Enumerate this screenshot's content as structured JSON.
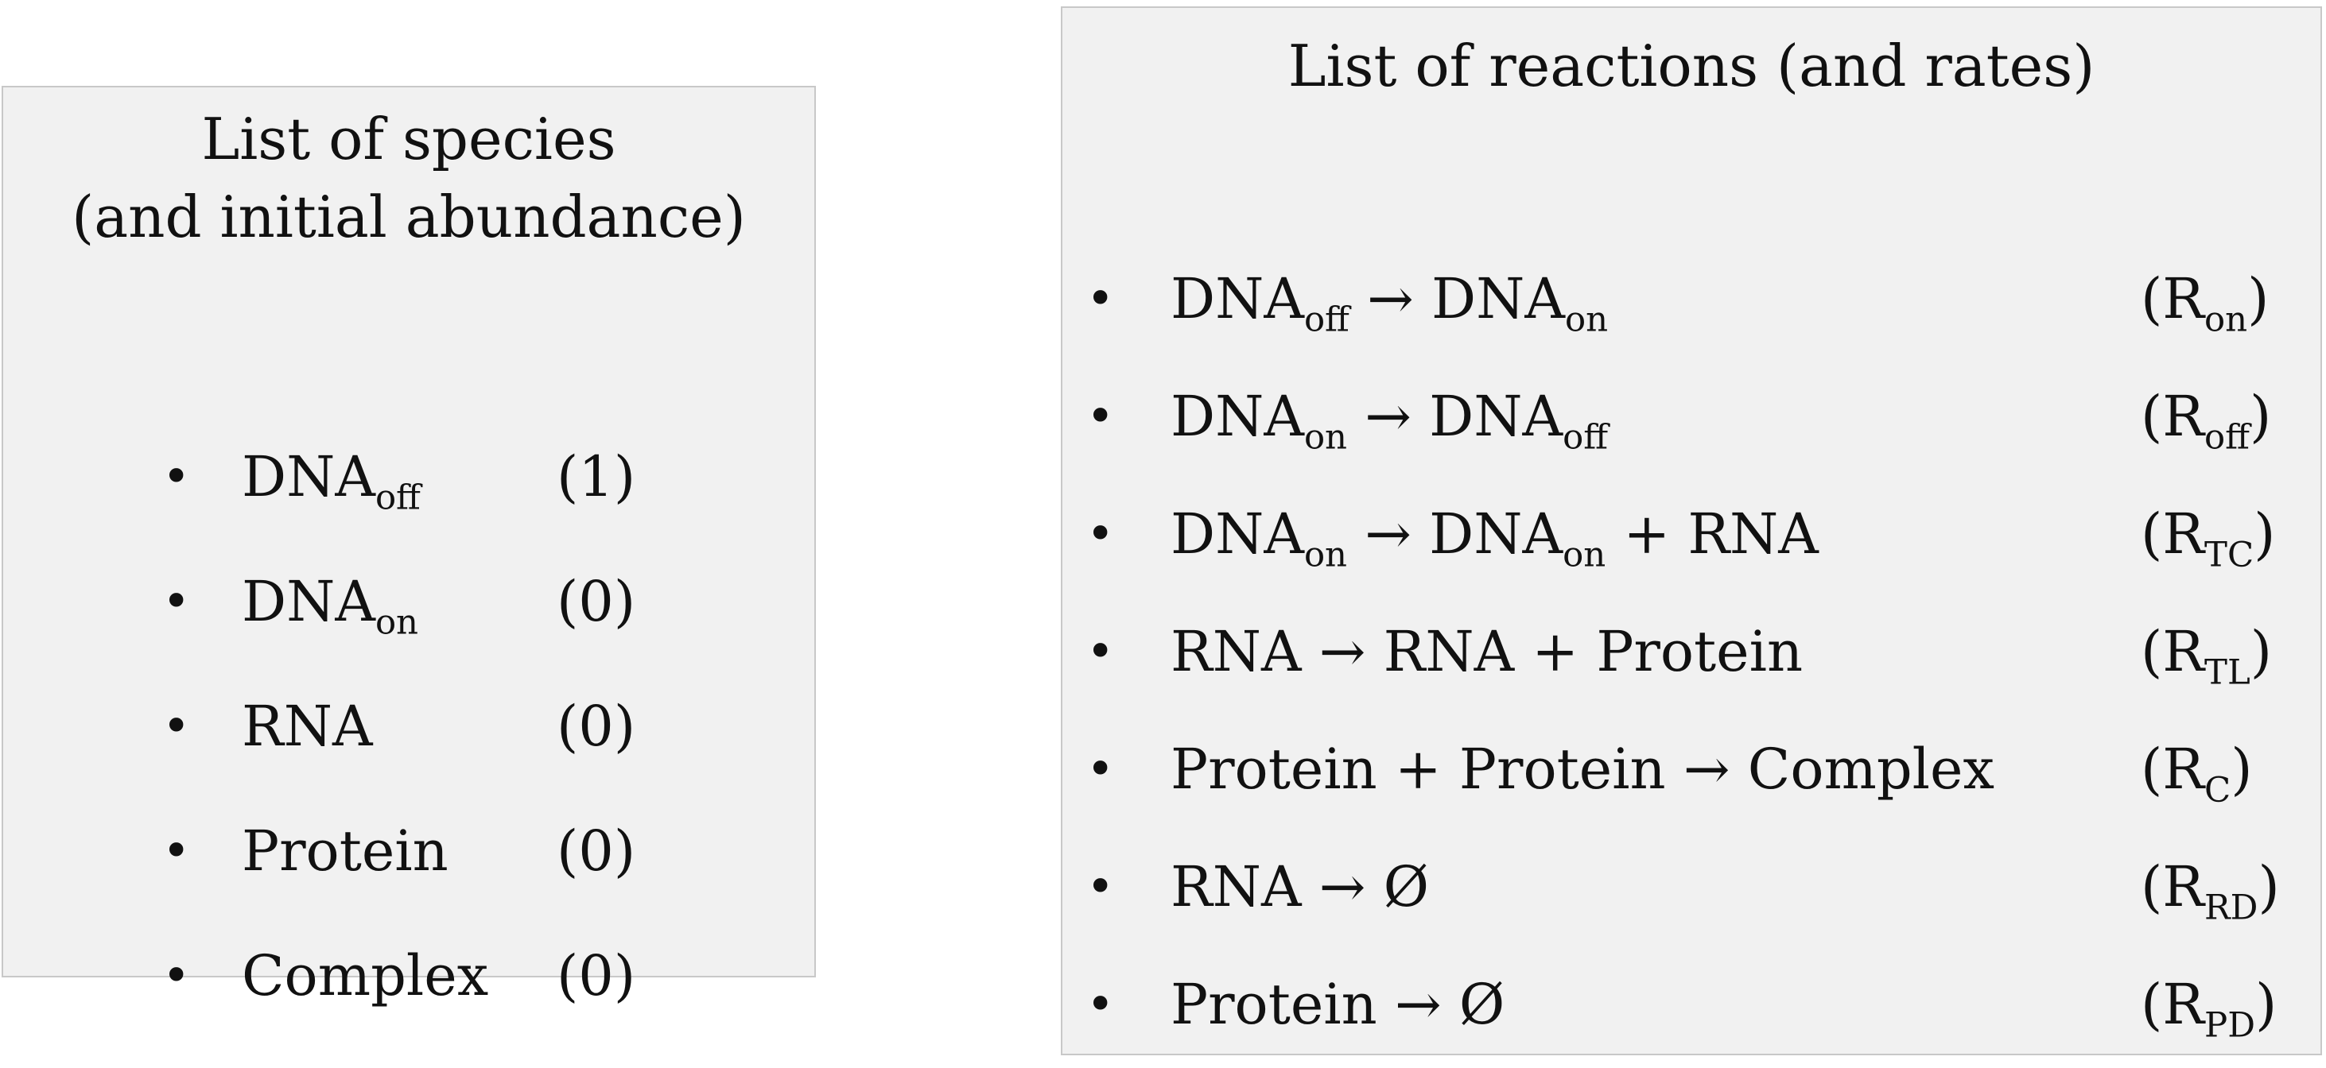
{
  "species_panel": {
    "title_line1": "List of species",
    "title_line2": "(and initial abundance)",
    "bullet": "•",
    "items": [
      {
        "base": "DNA",
        "sub": "off",
        "amount": "(1)"
      },
      {
        "base": "DNA",
        "sub": "on",
        "amount": "(0)"
      },
      {
        "base": "RNA",
        "sub": "",
        "amount": "(0)"
      },
      {
        "base": "Protein",
        "sub": "",
        "amount": "(0)"
      },
      {
        "base": "Complex",
        "sub": "",
        "amount": "(0)"
      }
    ]
  },
  "reactions_panel": {
    "title": "List of reactions (and rates)",
    "bullet": "•",
    "reactions": [
      {
        "parts": [
          [
            "DNA",
            "off"
          ],
          [
            " → DNA",
            "on"
          ]
        ],
        "rate_open": "(R",
        "rate_sub": "on",
        "rate_close": ")"
      },
      {
        "parts": [
          [
            "DNA",
            "on"
          ],
          [
            " → DNA",
            "off"
          ]
        ],
        "rate_open": "(R",
        "rate_sub": "off",
        "rate_close": ")"
      },
      {
        "parts": [
          [
            "DNA",
            "on"
          ],
          [
            " → DNA",
            "on"
          ],
          [
            " + RNA",
            ""
          ]
        ],
        "rate_open": "(R",
        "rate_sub": "TC",
        "rate_close": ")"
      },
      {
        "parts": [
          [
            "RNA → RNA + Protein",
            ""
          ]
        ],
        "rate_open": "(R",
        "rate_sub": "TL",
        "rate_close": ")"
      },
      {
        "parts": [
          [
            "Protein + Protein → Complex",
            ""
          ]
        ],
        "rate_open": "(R",
        "rate_sub": "C",
        "rate_close": ")"
      },
      {
        "parts": [
          [
            "RNA → Ø",
            ""
          ]
        ],
        "rate_open": "(R",
        "rate_sub": "RD",
        "rate_close": ")"
      },
      {
        "parts": [
          [
            "Protein → Ø",
            ""
          ]
        ],
        "rate_open": "(R",
        "rate_sub": "PD",
        "rate_close": ")"
      }
    ]
  }
}
